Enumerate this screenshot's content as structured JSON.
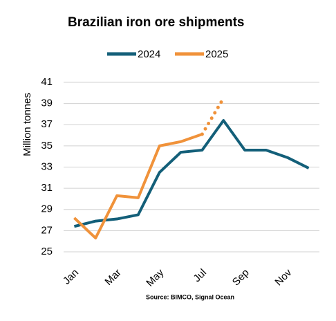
{
  "chart_data": {
    "type": "line",
    "title": "Brazilian iron ore shipments",
    "y_label": "Million tonnes",
    "source": "Source: BIMCO, Signal Ocean",
    "categories": [
      "Jan",
      null,
      "Mar",
      null,
      "May",
      null,
      "Jul",
      null,
      "Sep",
      null,
      "Nov",
      null
    ],
    "series": [
      {
        "name": "2024",
        "color": "#135f79",
        "values": [
          27.4,
          27.9,
          28.1,
          28.5,
          32.5,
          34.4,
          34.6,
          37.4,
          34.6,
          34.6,
          33.9,
          32.9
        ]
      },
      {
        "name": "2025",
        "color": "#f0923a",
        "values": [
          28.2,
          26.3,
          30.3,
          30.1,
          35.0,
          35.4,
          36.1,
          39.5,
          null,
          null,
          null,
          null
        ],
        "dotted_from": 6
      }
    ],
    "ylim": [
      25,
      41
    ],
    "yticks": [
      25,
      27,
      29,
      31,
      33,
      35,
      37,
      39,
      41
    ],
    "grid": true,
    "legend": "top"
  }
}
